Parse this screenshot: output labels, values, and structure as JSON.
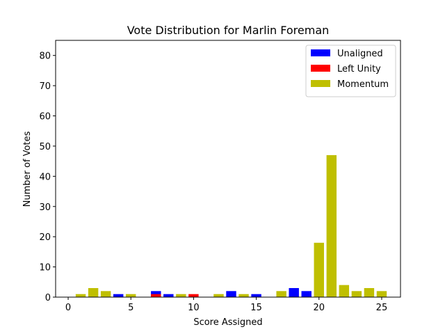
{
  "chart_data": {
    "type": "bar",
    "title": "Vote Distribution for Marlin Foreman",
    "xlabel": "Score Assigned",
    "ylabel": "Number of Votes",
    "xlim": [
      -1,
      26.5
    ],
    "ylim": [
      0,
      85
    ],
    "xticks": [
      0,
      5,
      10,
      15,
      20,
      25
    ],
    "yticks": [
      0,
      10,
      20,
      30,
      40,
      50,
      60,
      70,
      80
    ],
    "legend_position": "top-right",
    "grid": false,
    "series": [
      {
        "name": "Unaligned",
        "color": "#0000ff",
        "x": [
          4,
          7,
          8,
          13,
          15,
          18,
          19
        ],
        "values": [
          1,
          2,
          1,
          2,
          1,
          3,
          2
        ]
      },
      {
        "name": "Left Unity",
        "color": "#ff0000",
        "x": [
          7,
          10
        ],
        "values": [
          1,
          1
        ]
      },
      {
        "name": "Momentum",
        "color": "#bfbf00",
        "x": [
          1,
          2,
          3,
          5,
          9,
          12,
          14,
          17,
          20,
          21,
          22,
          23,
          24,
          25
        ],
        "values": [
          1,
          3,
          2,
          1,
          1,
          1,
          1,
          2,
          18,
          47,
          4,
          2,
          3,
          2
        ]
      }
    ]
  }
}
